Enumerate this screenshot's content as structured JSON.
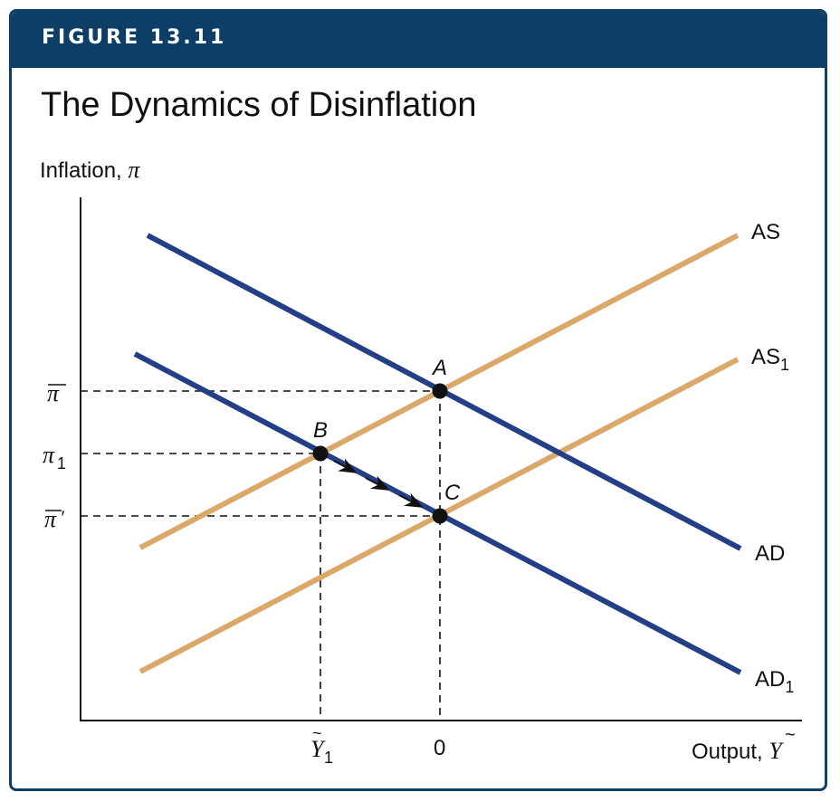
{
  "figure": {
    "label": "FIGURE 13.11",
    "title": "The Dynamics of Disinflation"
  },
  "axes": {
    "y_label": "Inflation,",
    "y_symbol": "π",
    "x_label": "Output,",
    "x_symbol": "Y"
  },
  "ticks": {
    "y": [
      {
        "symbol": "π",
        "overbar": true,
        "prime": false,
        "subscript": ""
      },
      {
        "symbol": "π",
        "overbar": false,
        "prime": false,
        "subscript": "1"
      },
      {
        "symbol": "π",
        "overbar": true,
        "prime": true,
        "subscript": ""
      }
    ],
    "x": [
      {
        "symbol": "Y",
        "tilde": true,
        "subscript": "1"
      },
      {
        "text": "0"
      }
    ]
  },
  "curves": {
    "as": {
      "name": "AS",
      "subscript": "",
      "color": "#dba86a"
    },
    "as1": {
      "name": "AS",
      "subscript": "1",
      "color": "#dba86a"
    },
    "ad": {
      "name": "AD",
      "subscript": "",
      "color": "#233f86"
    },
    "ad1": {
      "name": "AD",
      "subscript": "1",
      "color": "#233f86"
    }
  },
  "points": {
    "a": "A",
    "b": "B",
    "c": "C"
  },
  "colors": {
    "header": "#0d3f66",
    "axis": "#111111",
    "guide": "#111111"
  }
}
